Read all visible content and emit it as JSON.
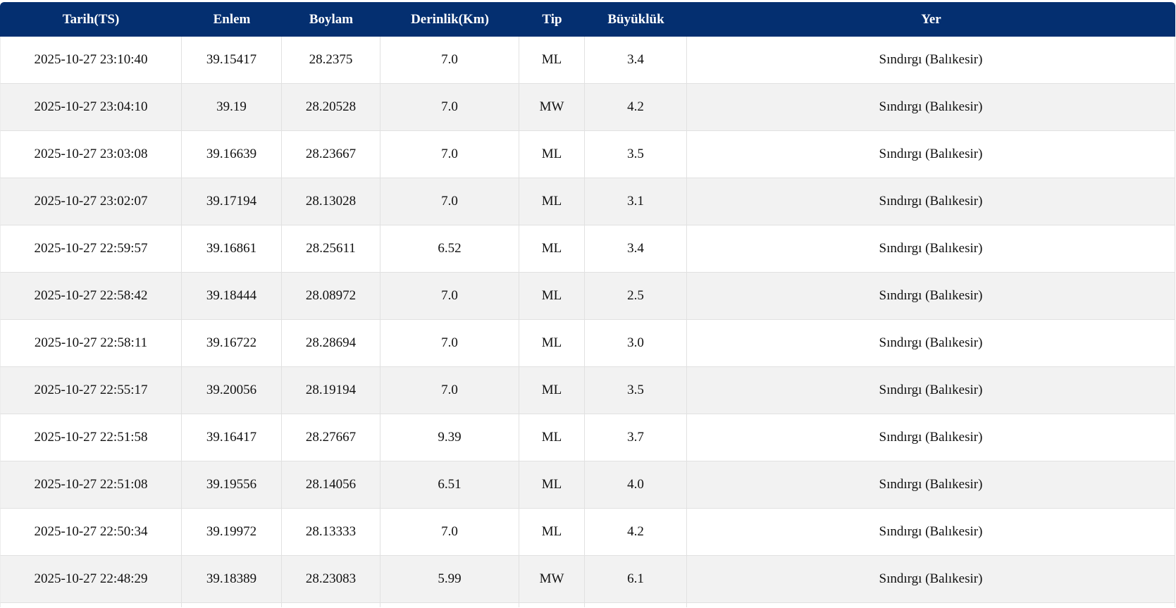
{
  "table": {
    "columns": [
      {
        "key": "tarih",
        "label": "Tarih(TS)"
      },
      {
        "key": "enlem",
        "label": "Enlem"
      },
      {
        "key": "boylam",
        "label": "Boylam"
      },
      {
        "key": "derinlik",
        "label": "Derinlik(Km)"
      },
      {
        "key": "tip",
        "label": "Tip"
      },
      {
        "key": "buyukluk",
        "label": "Büyüklük"
      },
      {
        "key": "yer",
        "label": "Yer"
      }
    ],
    "rows": [
      [
        "2025-10-27 23:10:40",
        "39.15417",
        "28.2375",
        "7.0",
        "ML",
        "3.4",
        "Sındırgı (Balıkesir)"
      ],
      [
        "2025-10-27 23:04:10",
        "39.19",
        "28.20528",
        "7.0",
        "MW",
        "4.2",
        "Sındırgı (Balıkesir)"
      ],
      [
        "2025-10-27 23:03:08",
        "39.16639",
        "28.23667",
        "7.0",
        "ML",
        "3.5",
        "Sındırgı (Balıkesir)"
      ],
      [
        "2025-10-27 23:02:07",
        "39.17194",
        "28.13028",
        "7.0",
        "ML",
        "3.1",
        "Sındırgı (Balıkesir)"
      ],
      [
        "2025-10-27 22:59:57",
        "39.16861",
        "28.25611",
        "6.52",
        "ML",
        "3.4",
        "Sındırgı (Balıkesir)"
      ],
      [
        "2025-10-27 22:58:42",
        "39.18444",
        "28.08972",
        "7.0",
        "ML",
        "2.5",
        "Sındırgı (Balıkesir)"
      ],
      [
        "2025-10-27 22:58:11",
        "39.16722",
        "28.28694",
        "7.0",
        "ML",
        "3.0",
        "Sındırgı (Balıkesir)"
      ],
      [
        "2025-10-27 22:55:17",
        "39.20056",
        "28.19194",
        "7.0",
        "ML",
        "3.5",
        "Sındırgı (Balıkesir)"
      ],
      [
        "2025-10-27 22:51:58",
        "39.16417",
        "28.27667",
        "9.39",
        "ML",
        "3.7",
        "Sındırgı (Balıkesir)"
      ],
      [
        "2025-10-27 22:51:08",
        "39.19556",
        "28.14056",
        "6.51",
        "ML",
        "4.0",
        "Sındırgı (Balıkesir)"
      ],
      [
        "2025-10-27 22:50:34",
        "39.19972",
        "28.13333",
        "7.0",
        "ML",
        "4.2",
        "Sındırgı (Balıkesir)"
      ],
      [
        "2025-10-27 22:48:29",
        "39.18389",
        "28.23083",
        "5.99",
        "MW",
        "6.1",
        "Sındırgı (Balıkesir)"
      ]
    ]
  },
  "colors": {
    "header_bg": "#042f70",
    "header_text": "#ffffff",
    "row_bg": "#ffffff",
    "row_stripe_bg": "#f2f2f2",
    "border": "#e1e1e1",
    "cell_text": "#111111"
  }
}
